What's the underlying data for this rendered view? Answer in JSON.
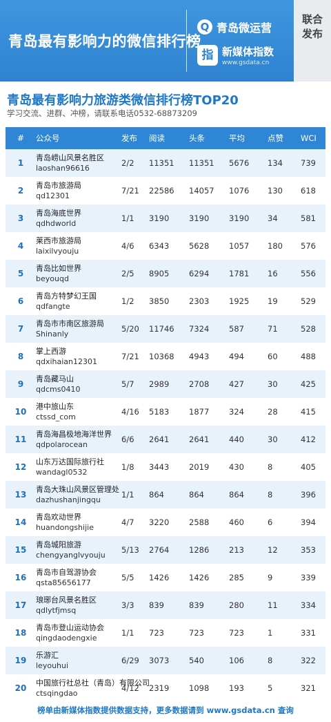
{
  "banner": {
    "title": "青岛最有影响力的微信排行榜",
    "brand1_icon": "Q",
    "brand1_name": "青岛微运营",
    "brand2_icon": "指",
    "brand2_name": "新媒体指数",
    "brand2_url": "www.gsdata.cn",
    "release_label": "联合发布"
  },
  "section": {
    "title": "青岛最有影响力旅游类微信排行榜TOP20",
    "contact": "学习交流、进群、冲榜，请联系电话0532-68873209"
  },
  "table": {
    "headers": [
      "#",
      "公众号",
      "发布",
      "阅读",
      "头条",
      "平均",
      "点赞",
      "WCI"
    ],
    "rows": [
      {
        "rank": "1",
        "name": "青岛崂山风景名胜区",
        "id": "laoshan96616",
        "pub": "2/2",
        "read": "11351",
        "head": "11351",
        "avg": "5676",
        "like": "134",
        "wci": "739"
      },
      {
        "rank": "2",
        "name": "青岛市旅游局",
        "id": "qd12301",
        "pub": "7/21",
        "read": "22586",
        "head": "14057",
        "avg": "1076",
        "like": "130",
        "wci": "618"
      },
      {
        "rank": "3",
        "name": "青岛海底世界",
        "id": "qdhdworld",
        "pub": "1/1",
        "read": "3190",
        "head": "3190",
        "avg": "3190",
        "like": "34",
        "wci": "581"
      },
      {
        "rank": "4",
        "name": "莱西市旅游局",
        "id": "laixilvyouju",
        "pub": "4/6",
        "read": "6343",
        "head": "5628",
        "avg": "1057",
        "like": "180",
        "wci": "576"
      },
      {
        "rank": "5",
        "name": "青岛比如世界",
        "id": "beyouqd",
        "pub": "2/5",
        "read": "8905",
        "head": "6294",
        "avg": "1781",
        "like": "16",
        "wci": "556"
      },
      {
        "rank": "6",
        "name": "青岛方特梦幻王国",
        "id": "qdfangte",
        "pub": "1/2",
        "read": "3850",
        "head": "2303",
        "avg": "1925",
        "like": "19",
        "wci": "529"
      },
      {
        "rank": "7",
        "name": "青岛市市南区旅游局",
        "id": "Shinanly",
        "pub": "5/20",
        "read": "11746",
        "head": "7324",
        "avg": "587",
        "like": "71",
        "wci": "528"
      },
      {
        "rank": "8",
        "name": "掌上西游",
        "id": "qdxihaian12301",
        "pub": "7/21",
        "read": "10368",
        "head": "4943",
        "avg": "494",
        "like": "60",
        "wci": "488"
      },
      {
        "rank": "9",
        "name": "青岛藏马山",
        "id": "qdcms0410",
        "pub": "5/7",
        "read": "2989",
        "head": "2708",
        "avg": "427",
        "like": "30",
        "wci": "425"
      },
      {
        "rank": "10",
        "name": "港中旅山东",
        "id": "ctssd_com",
        "pub": "4/16",
        "read": "5183",
        "head": "1877",
        "avg": "324",
        "like": "28",
        "wci": "415"
      },
      {
        "rank": "11",
        "name": "青岛海昌极地海洋世界",
        "id": "qdpolarocean",
        "pub": "6/6",
        "read": "2641",
        "head": "2641",
        "avg": "440",
        "like": "30",
        "wci": "412"
      },
      {
        "rank": "12",
        "name": "山东万达国际旅行社",
        "id": "wandagl0532",
        "pub": "1/8",
        "read": "3443",
        "head": "2019",
        "avg": "430",
        "like": "8",
        "wci": "405"
      },
      {
        "rank": "13",
        "name": "青岛大珠山风景区管理处",
        "id": "dazhushanjingqu",
        "pub": "1/1",
        "read": "864",
        "head": "864",
        "avg": "864",
        "like": "8",
        "wci": "396"
      },
      {
        "rank": "14",
        "name": "青岛欢动世界",
        "id": "huandongshijie",
        "pub": "4/7",
        "read": "3220",
        "head": "2588",
        "avg": "460",
        "like": "6",
        "wci": "394"
      },
      {
        "rank": "15",
        "name": "青岛城阳旅游",
        "id": "chengyanglvyouju",
        "pub": "5/13",
        "read": "2764",
        "head": "1286",
        "avg": "213",
        "like": "12",
        "wci": "353"
      },
      {
        "rank": "16",
        "name": "青岛市自驾游协会",
        "id": "qsta85656177",
        "pub": "5/5",
        "read": "1426",
        "head": "1426",
        "avg": "285",
        "like": "9",
        "wci": "339"
      },
      {
        "rank": "17",
        "name": "琅琊台风景名胜区",
        "id": "qdlytfjmsq",
        "pub": "3/3",
        "read": "839",
        "head": "839",
        "avg": "280",
        "like": "11",
        "wci": "334"
      },
      {
        "rank": "18",
        "name": "青岛市登山运动协会",
        "id": "qingdaodengxie",
        "pub": "1/1",
        "read": "723",
        "head": "723",
        "avg": "723",
        "like": "1",
        "wci": "331"
      },
      {
        "rank": "19",
        "name": "乐游汇",
        "id": "leyouhui",
        "pub": "6/29",
        "read": "3073",
        "head": "540",
        "avg": "106",
        "like": "8",
        "wci": "322"
      },
      {
        "rank": "20",
        "name": "中国旅行社总社（青岛）有限公司",
        "id": "ctsqingdao",
        "pub": "4/12",
        "read": "2319",
        "head": "1098",
        "avg": "193",
        "like": "5",
        "wci": "321"
      }
    ]
  },
  "footer": {
    "text": "榜单由新媒体指数提供数据支持，更多数据请到 www.gsdata.cn 查询"
  },
  "colors": {
    "banner": "#2f82d0",
    "header_row": "#2e86d4",
    "alt_row": "#e8f2fb",
    "accent_text": "#1e78c8"
  }
}
